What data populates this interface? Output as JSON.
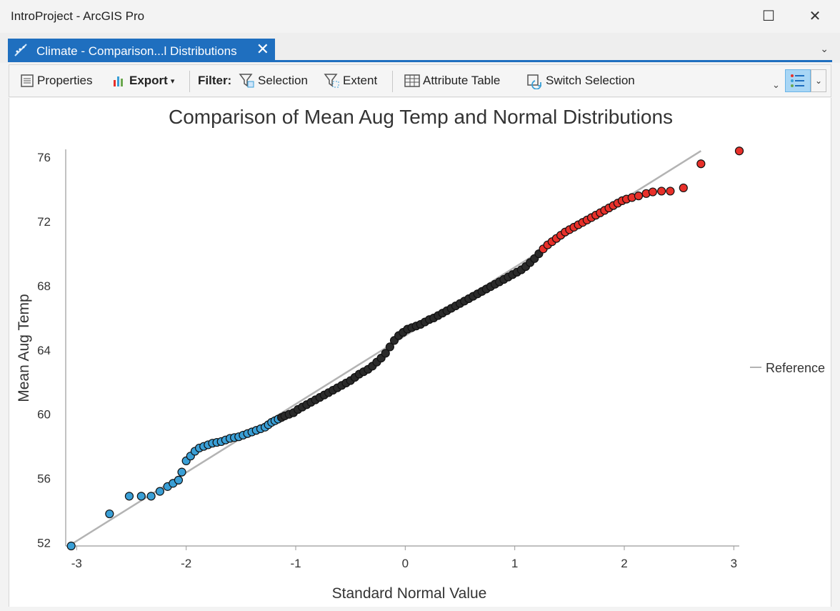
{
  "window": {
    "title": "IntroProject - ArcGIS Pro",
    "maximize_glyph": "☐",
    "close_glyph": "✕"
  },
  "tab": {
    "label": "Climate - Comparison...l Distributions",
    "close_glyph": "✕",
    "icon": "chart-line-icon",
    "overflow_glyph": "⌄"
  },
  "toolbar": {
    "properties": "Properties",
    "export": "Export",
    "export_arrow": "▾",
    "filter_label": "Filter:",
    "selection": "Selection",
    "extent": "Extent",
    "attribute_table": "Attribute Table",
    "switch_selection": "Switch Selection",
    "overflow_glyph": "⌄",
    "view_dropdown_glyph": "⌄"
  },
  "colors": {
    "accent": "#1f6fbf",
    "low": "#3a9fd6",
    "high": "#e8302a",
    "mid": "#2a2a2a",
    "reference": "#b3b3b3"
  },
  "chart_data": {
    "type": "scatter",
    "title": "Comparison of Mean Aug Temp and Normal Distributions",
    "xlabel": "Standard Normal Value",
    "ylabel": "Mean Aug Temp",
    "xlim": [
      -3.1,
      3.05
    ],
    "ylim": [
      51.8,
      76.5
    ],
    "x_ticks": [
      -3,
      -2,
      -1,
      0,
      1,
      2,
      3
    ],
    "y_ticks": [
      52,
      56,
      60,
      64,
      68,
      72,
      76
    ],
    "grid": false,
    "legend": {
      "entries": [
        "Reference"
      ],
      "placement": "right"
    },
    "reference_line": {
      "name": "Reference",
      "points": [
        [
          -3.05,
          51.9
        ],
        [
          2.7,
          76.4
        ]
      ]
    },
    "series": [
      {
        "points": [
          [
            -3.05,
            51.8
          ],
          [
            -2.7,
            53.8
          ],
          [
            -2.52,
            54.9
          ],
          [
            -2.41,
            54.9
          ],
          [
            -2.32,
            54.9
          ],
          [
            -2.24,
            55.2
          ],
          [
            -2.17,
            55.5
          ],
          [
            -2.12,
            55.7
          ],
          [
            -2.07,
            55.9
          ],
          [
            -2.04,
            56.4
          ],
          [
            -2.0,
            57.1
          ],
          [
            -1.96,
            57.4
          ],
          [
            -1.92,
            57.7
          ],
          [
            -1.88,
            57.9
          ],
          [
            -1.84,
            58.0
          ],
          [
            -1.8,
            58.1
          ],
          [
            -1.76,
            58.2
          ],
          [
            -1.72,
            58.25
          ],
          [
            -1.68,
            58.3
          ],
          [
            -1.64,
            58.4
          ],
          [
            -1.6,
            58.5
          ],
          [
            -1.56,
            58.55
          ],
          [
            -1.52,
            58.6
          ],
          [
            -1.48,
            58.7
          ],
          [
            -1.44,
            58.8
          ],
          [
            -1.4,
            58.9
          ],
          [
            -1.36,
            59.0
          ],
          [
            -1.32,
            59.1
          ],
          [
            -1.28,
            59.2
          ],
          [
            -1.25,
            59.35
          ],
          [
            -1.22,
            59.5
          ],
          [
            -1.19,
            59.6
          ],
          [
            -1.16,
            59.7
          ]
        ],
        "color": "#3a9fd6"
      },
      {
        "points": [
          [
            -1.13,
            59.8
          ],
          [
            -1.1,
            59.9
          ],
          [
            -1.06,
            60.0
          ],
          [
            -1.02,
            60.1
          ],
          [
            -0.98,
            60.3
          ],
          [
            -0.94,
            60.45
          ],
          [
            -0.9,
            60.6
          ],
          [
            -0.86,
            60.75
          ],
          [
            -0.82,
            60.9
          ],
          [
            -0.78,
            61.05
          ],
          [
            -0.74,
            61.2
          ],
          [
            -0.7,
            61.35
          ],
          [
            -0.66,
            61.5
          ],
          [
            -0.62,
            61.65
          ],
          [
            -0.58,
            61.8
          ],
          [
            -0.54,
            61.95
          ],
          [
            -0.5,
            62.1
          ],
          [
            -0.46,
            62.3
          ],
          [
            -0.42,
            62.5
          ],
          [
            -0.38,
            62.65
          ],
          [
            -0.34,
            62.8
          ],
          [
            -0.3,
            63.0
          ],
          [
            -0.26,
            63.25
          ],
          [
            -0.22,
            63.5
          ],
          [
            -0.18,
            63.8
          ],
          [
            -0.14,
            64.2
          ],
          [
            -0.1,
            64.6
          ],
          [
            -0.06,
            64.9
          ],
          [
            -0.02,
            65.1
          ],
          [
            0.02,
            65.3
          ],
          [
            0.06,
            65.4
          ],
          [
            0.1,
            65.5
          ],
          [
            0.14,
            65.6
          ],
          [
            0.18,
            65.75
          ],
          [
            0.22,
            65.9
          ],
          [
            0.26,
            66.0
          ],
          [
            0.3,
            66.15
          ],
          [
            0.34,
            66.3
          ],
          [
            0.38,
            66.45
          ],
          [
            0.42,
            66.6
          ],
          [
            0.46,
            66.75
          ],
          [
            0.5,
            66.9
          ],
          [
            0.54,
            67.05
          ],
          [
            0.58,
            67.2
          ],
          [
            0.62,
            67.35
          ],
          [
            0.66,
            67.5
          ],
          [
            0.7,
            67.65
          ],
          [
            0.74,
            67.8
          ],
          [
            0.78,
            67.95
          ],
          [
            0.82,
            68.1
          ],
          [
            0.86,
            68.25
          ],
          [
            0.9,
            68.4
          ],
          [
            0.94,
            68.55
          ],
          [
            0.98,
            68.7
          ],
          [
            1.02,
            68.85
          ],
          [
            1.06,
            69.0
          ],
          [
            1.1,
            69.2
          ],
          [
            1.14,
            69.45
          ],
          [
            1.18,
            69.7
          ],
          [
            1.22,
            70.0
          ]
        ],
        "color": "#2a2a2a"
      },
      {
        "points": [
          [
            1.26,
            70.3
          ],
          [
            1.3,
            70.55
          ],
          [
            1.34,
            70.75
          ],
          [
            1.38,
            70.95
          ],
          [
            1.42,
            71.15
          ],
          [
            1.46,
            71.35
          ],
          [
            1.5,
            71.5
          ],
          [
            1.54,
            71.65
          ],
          [
            1.58,
            71.8
          ],
          [
            1.62,
            71.95
          ],
          [
            1.66,
            72.1
          ],
          [
            1.7,
            72.25
          ],
          [
            1.74,
            72.4
          ],
          [
            1.78,
            72.55
          ],
          [
            1.82,
            72.7
          ],
          [
            1.86,
            72.85
          ],
          [
            1.9,
            73.0
          ],
          [
            1.94,
            73.15
          ],
          [
            1.98,
            73.3
          ],
          [
            2.02,
            73.4
          ],
          [
            2.07,
            73.5
          ],
          [
            2.13,
            73.6
          ],
          [
            2.2,
            73.75
          ],
          [
            2.26,
            73.85
          ],
          [
            2.34,
            73.9
          ],
          [
            2.42,
            73.9
          ],
          [
            2.54,
            74.1
          ],
          [
            2.7,
            75.6
          ],
          [
            3.05,
            76.4
          ]
        ],
        "color": "#e8302a"
      }
    ]
  }
}
